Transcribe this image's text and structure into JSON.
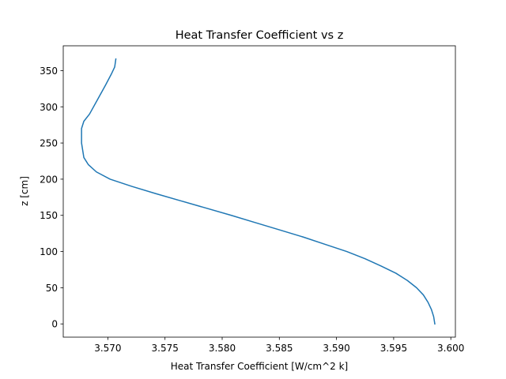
{
  "chart_data": {
    "type": "line",
    "title": "Heat Transfer Coefficient vs z",
    "xlabel": "Heat Transfer Coefficient [W/cm^2 k]",
    "ylabel": "z [cm]",
    "xlim": [
      3.5661,
      3.6004
    ],
    "ylim": [
      -18.3,
      384.3
    ],
    "xticks": [
      3.57,
      3.575,
      3.58,
      3.585,
      3.59,
      3.595,
      3.6
    ],
    "xtick_labels": [
      "3.570",
      "3.575",
      "3.580",
      "3.585",
      "3.590",
      "3.595",
      "3.600"
    ],
    "yticks": [
      0,
      50,
      100,
      150,
      200,
      250,
      300,
      350
    ],
    "ytick_labels": [
      "0",
      "50",
      "100",
      "150",
      "200",
      "250",
      "300",
      "350"
    ],
    "grid": false,
    "series": [
      {
        "color": "#1f77b4",
        "x": [
          3.5986,
          3.5985,
          3.5983,
          3.598,
          3.5976,
          3.597,
          3.5962,
          3.5952,
          3.5939,
          3.5925,
          3.5909,
          3.589,
          3.5871,
          3.585,
          3.5829,
          3.5808,
          3.5786,
          3.5764,
          3.5742,
          3.5721,
          3.5702,
          3.569,
          3.5683,
          3.5679,
          3.5677,
          3.5677,
          3.5679,
          3.5684,
          3.5691,
          3.5698,
          3.5703,
          3.5706,
          3.5707
        ],
        "y": [
          0,
          10,
          20,
          30,
          40,
          50,
          60,
          70,
          80,
          90,
          100,
          110,
          120,
          130,
          140,
          150,
          160,
          170,
          180,
          190,
          200,
          210,
          220,
          230,
          250,
          270,
          280,
          290,
          310,
          330,
          345,
          355,
          366
        ]
      }
    ]
  }
}
